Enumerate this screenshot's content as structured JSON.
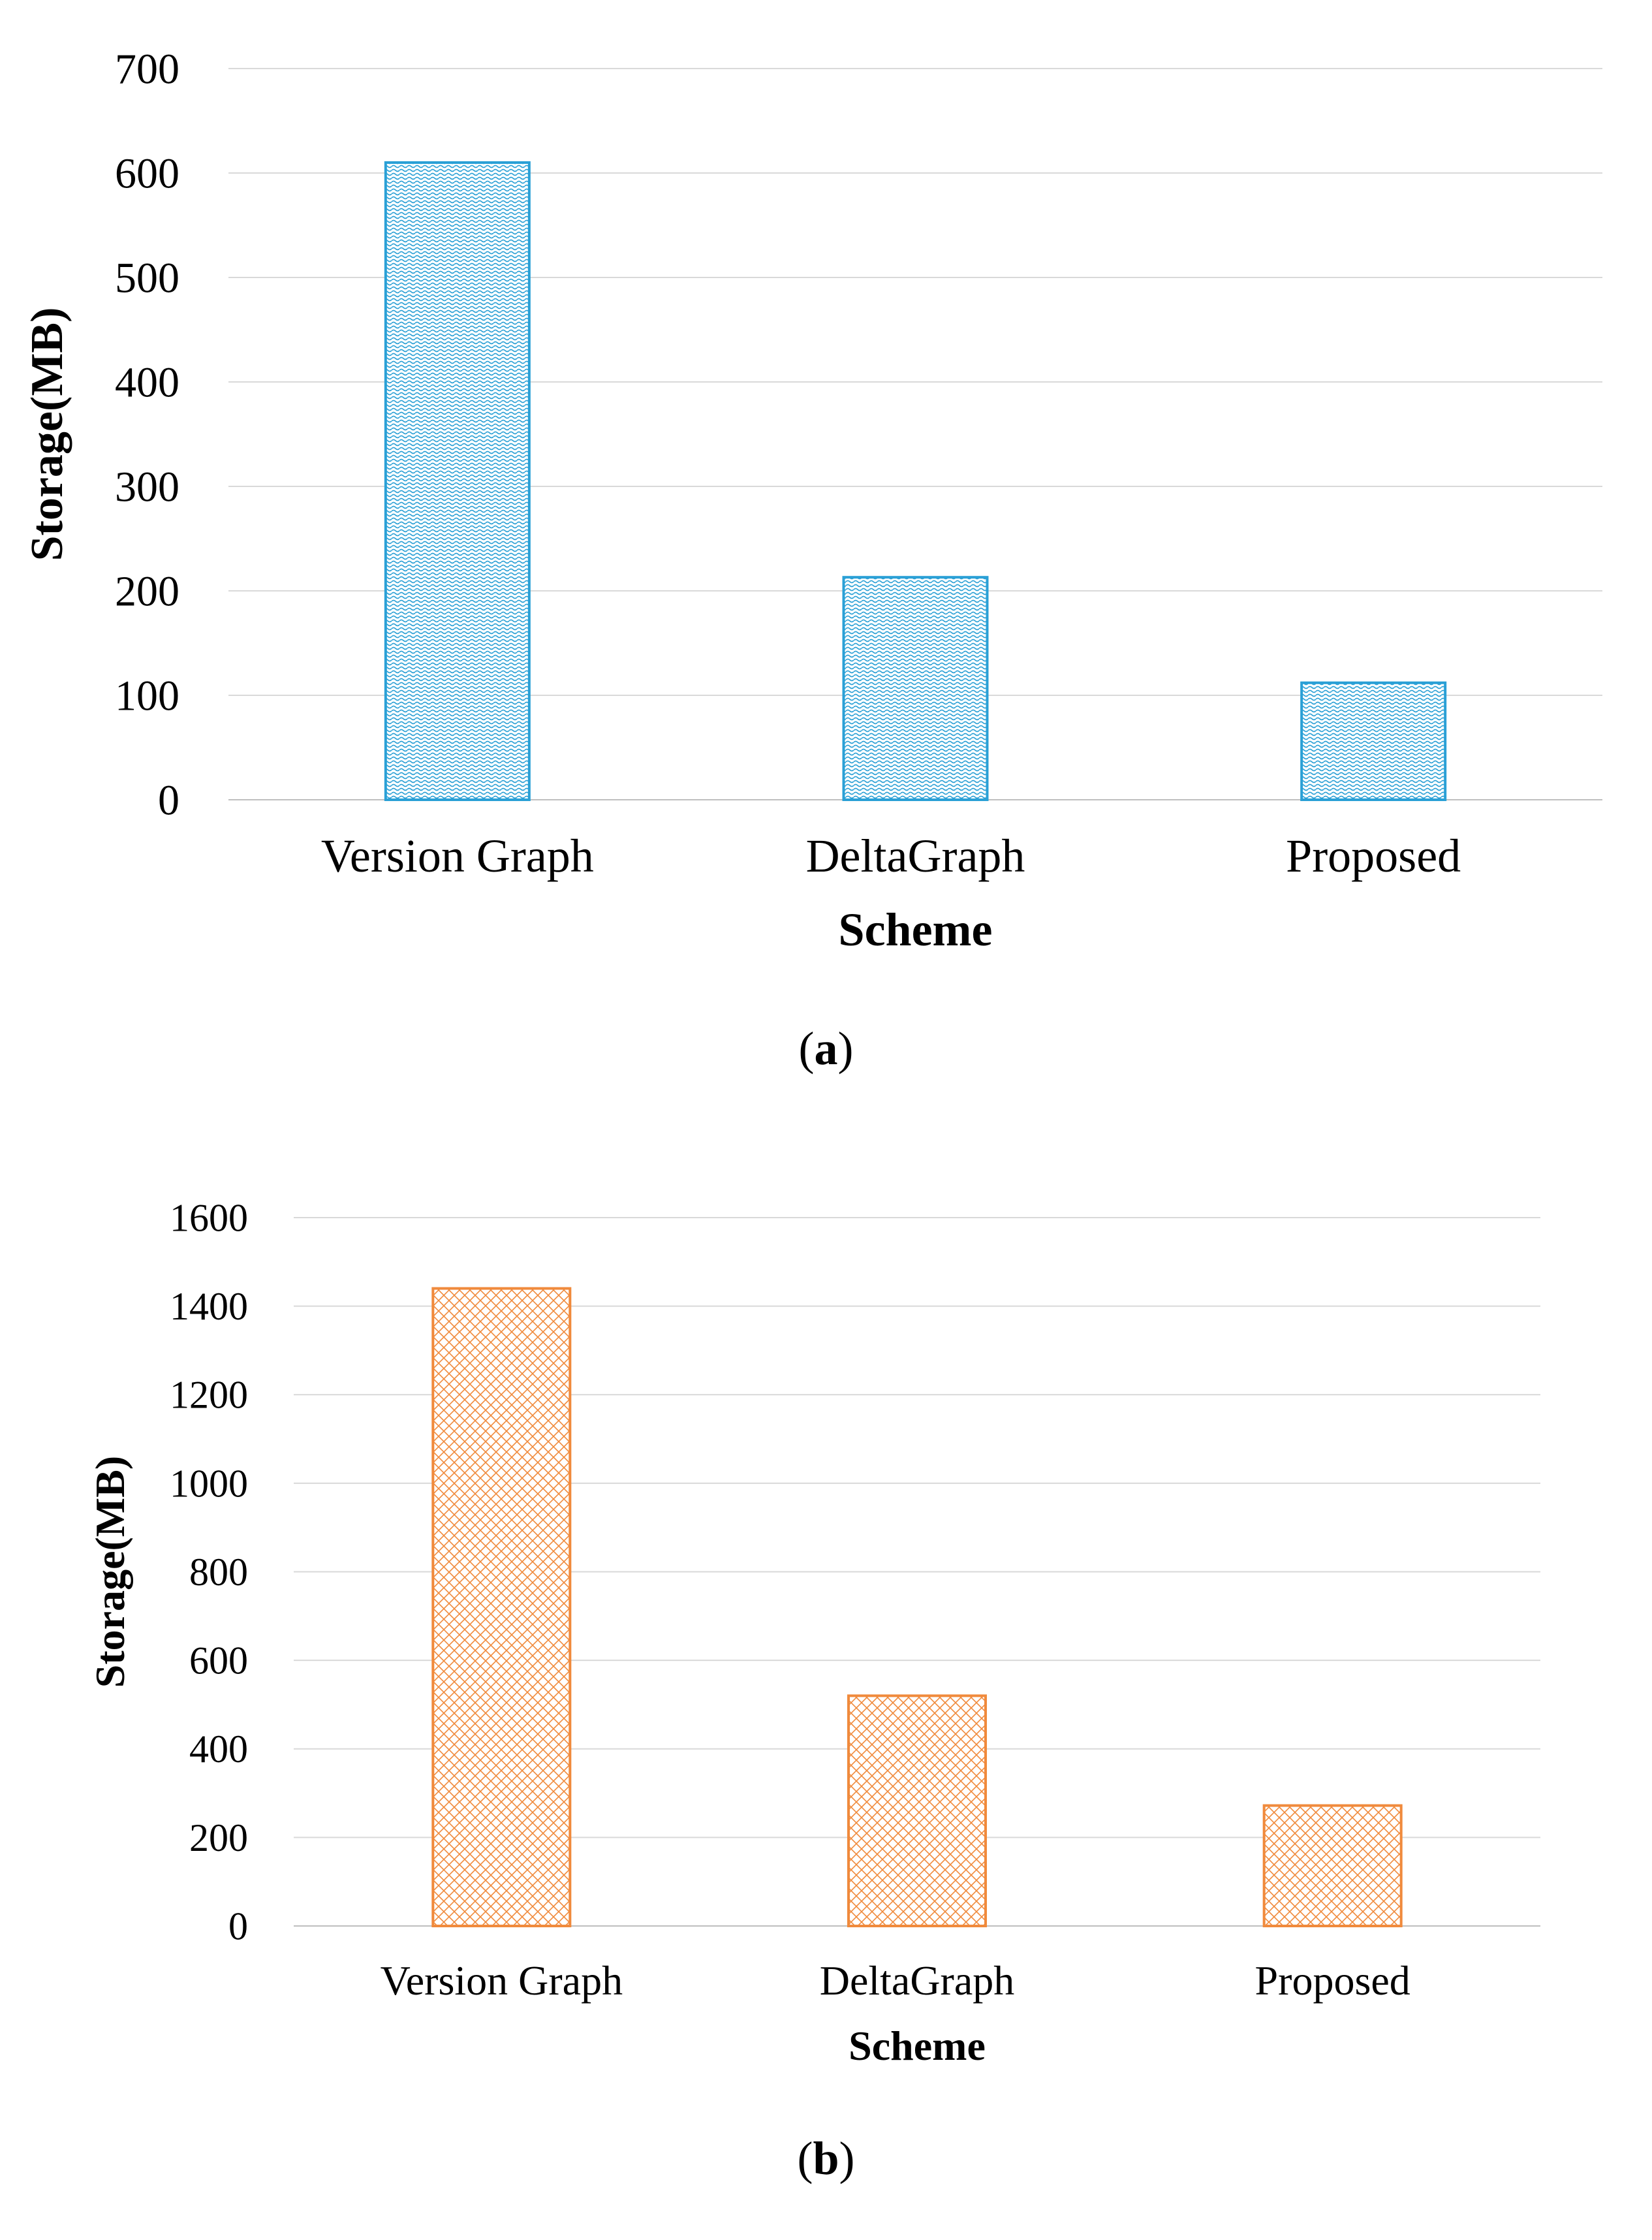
{
  "chart_data": [
    {
      "type": "bar",
      "panel": "(a)",
      "categories": [
        "Version Graph",
        "DeltaGraph",
        "Proposed"
      ],
      "values": [
        610,
        213,
        112
      ],
      "xlabel": "Scheme",
      "ylabel": "Storage(MB)",
      "ylim": [
        0,
        700
      ],
      "yticks": [
        0,
        100,
        200,
        300,
        400,
        500,
        600,
        700
      ],
      "grid": true,
      "legend": "none",
      "bar_color": "#2aa0d6",
      "pattern": "dotted"
    },
    {
      "type": "bar",
      "panel": "(b)",
      "categories": [
        "Version Graph",
        "DeltaGraph",
        "Proposed"
      ],
      "values": [
        1440,
        520,
        272
      ],
      "xlabel": "Scheme",
      "ylabel": "Storage(MB)",
      "ylim": [
        0,
        1600
      ],
      "yticks": [
        0,
        200,
        400,
        600,
        800,
        1000,
        1200,
        1400,
        1600
      ],
      "grid": true,
      "legend": "none",
      "bar_color": "#f08a3c",
      "pattern": "crosshatch"
    }
  ],
  "captions": {
    "a_open": "(",
    "a_letter": "a",
    "a_close": ")",
    "b_open": "(",
    "b_letter": "b",
    "b_close": ")"
  }
}
